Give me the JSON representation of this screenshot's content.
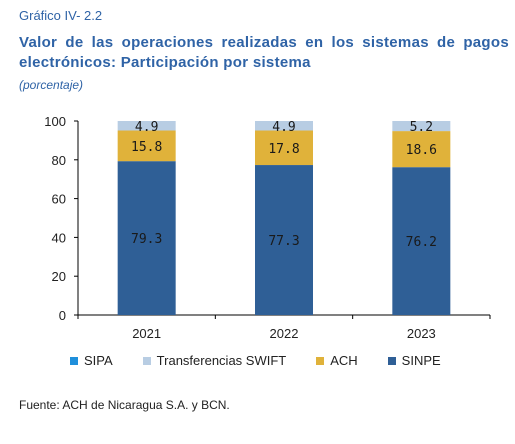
{
  "figure_label": "Gráfico IV- 2.2",
  "source": "Fuente: ACH de Nicaragua S.A. y BCN.",
  "chart_data": {
    "type": "bar",
    "stacked": true,
    "title": "Valor de las operaciones realizadas en los sistemas de pagos electrónicos: Participación por sistema",
    "subtitle": "(porcentaje)",
    "xlabel": "",
    "ylabel": "",
    "categories": [
      "2021",
      "2022",
      "2023"
    ],
    "ylim": [
      0,
      100
    ],
    "yticks": [
      0,
      20,
      40,
      60,
      80,
      100
    ],
    "yticklabels": [
      "0",
      "20",
      "40",
      "60",
      "80",
      "100"
    ],
    "grid": false,
    "legend_position": "bottom",
    "series": [
      {
        "name": "SIPA",
        "color": "#1f8fdb",
        "values": [
          0,
          0,
          0
        ],
        "labels": [
          "",
          "",
          ""
        ]
      },
      {
        "name": "Transferencias SWIFT",
        "color": "#b8cde3",
        "values": [
          4.9,
          4.9,
          5.2
        ],
        "labels": [
          "4.9",
          "4.9",
          "5.2"
        ]
      },
      {
        "name": "ACH",
        "color": "#e0b23a",
        "values": [
          15.8,
          17.8,
          18.6
        ],
        "labels": [
          "15.8",
          "17.8",
          "18.6"
        ]
      },
      {
        "name": "SINPE",
        "color": "#2f5f96",
        "values": [
          79.3,
          77.3,
          76.2
        ],
        "labels": [
          "79.3",
          "77.3",
          "76.2"
        ]
      }
    ]
  }
}
